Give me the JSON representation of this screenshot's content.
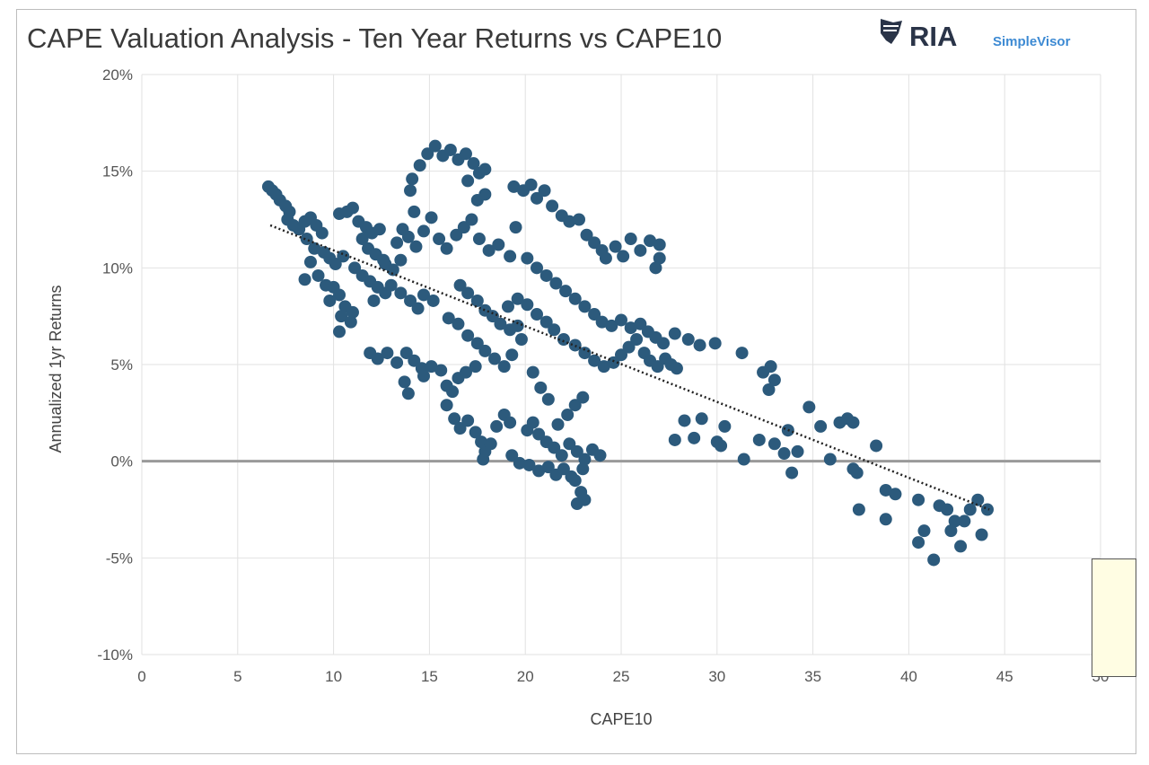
{
  "chart_data": {
    "type": "scatter",
    "title": "CAPE Valuation Analysis - Ten Year Returns vs CAPE10",
    "xlabel": "CAPE10",
    "ylabel": "Annualized 1yr Returns",
    "xlim": [
      0,
      50
    ],
    "ylim": [
      -10,
      20
    ],
    "x_ticks": [
      0,
      5,
      10,
      15,
      20,
      25,
      30,
      35,
      40,
      45,
      50
    ],
    "y_ticks": [
      -10,
      -5,
      0,
      5,
      10,
      15,
      20
    ],
    "x_tick_labels": [
      "0",
      "5",
      "10",
      "15",
      "20",
      "25",
      "30",
      "35",
      "40",
      "45",
      "50"
    ],
    "y_tick_labels": [
      "-10%",
      "-5%",
      "0%",
      "5%",
      "10%",
      "15%",
      "20%"
    ],
    "grid": true,
    "legend": "none",
    "colors": {
      "points": "#2c5a7c",
      "trendline": "#222222",
      "zero_line": "#9a9a9a",
      "grid": "#e2e2e2"
    },
    "trendline": {
      "style": "dotted",
      "points": [
        [
          6.7,
          12.2
        ],
        [
          44.2,
          -2.5
        ]
      ]
    },
    "series": [
      {
        "points": [
          [
            6.6,
            14.2
          ],
          [
            6.8,
            14.0
          ],
          [
            7.0,
            13.8
          ],
          [
            7.2,
            13.5
          ],
          [
            7.5,
            13.2
          ],
          [
            7.7,
            12.9
          ],
          [
            7.6,
            12.5
          ],
          [
            7.9,
            12.2
          ],
          [
            8.2,
            12.0
          ],
          [
            8.5,
            12.4
          ],
          [
            8.8,
            12.6
          ],
          [
            9.1,
            12.2
          ],
          [
            9.4,
            11.8
          ],
          [
            8.6,
            11.5
          ],
          [
            9.0,
            11.0
          ],
          [
            9.5,
            10.8
          ],
          [
            9.8,
            10.5
          ],
          [
            10.1,
            10.2
          ],
          [
            10.5,
            10.6
          ],
          [
            8.8,
            10.3
          ],
          [
            9.2,
            9.6
          ],
          [
            8.5,
            9.4
          ],
          [
            9.6,
            9.1
          ],
          [
            10.0,
            9.0
          ],
          [
            10.3,
            8.6
          ],
          [
            9.8,
            8.3
          ],
          [
            10.6,
            8.0
          ],
          [
            11.0,
            7.7
          ],
          [
            10.4,
            7.5
          ],
          [
            10.9,
            7.2
          ],
          [
            10.3,
            6.7
          ],
          [
            10.3,
            12.8
          ],
          [
            10.7,
            12.9
          ],
          [
            11.0,
            13.1
          ],
          [
            11.3,
            12.4
          ],
          [
            11.7,
            12.1
          ],
          [
            12.0,
            11.8
          ],
          [
            12.4,
            12.0
          ],
          [
            11.5,
            11.5
          ],
          [
            11.8,
            11.0
          ],
          [
            12.2,
            10.7
          ],
          [
            12.6,
            10.4
          ],
          [
            11.1,
            10.0
          ],
          [
            11.5,
            9.6
          ],
          [
            11.9,
            9.3
          ],
          [
            12.3,
            9.0
          ],
          [
            12.7,
            8.7
          ],
          [
            12.1,
            8.3
          ],
          [
            12.7,
            10.2
          ],
          [
            13.1,
            9.9
          ],
          [
            13.5,
            10.4
          ],
          [
            13.3,
            11.3
          ],
          [
            13.9,
            11.6
          ],
          [
            14.3,
            11.1
          ],
          [
            13.6,
            12.0
          ],
          [
            13.0,
            9.1
          ],
          [
            13.5,
            8.7
          ],
          [
            14.0,
            8.3
          ],
          [
            14.4,
            7.9
          ],
          [
            14.7,
            8.6
          ],
          [
            15.2,
            8.3
          ],
          [
            11.9,
            5.6
          ],
          [
            12.3,
            5.3
          ],
          [
            12.8,
            5.6
          ],
          [
            13.3,
            5.1
          ],
          [
            13.8,
            5.6
          ],
          [
            14.2,
            5.2
          ],
          [
            14.6,
            4.8
          ],
          [
            15.1,
            4.9
          ],
          [
            15.6,
            4.7
          ],
          [
            13.7,
            4.1
          ],
          [
            13.9,
            3.5
          ],
          [
            14.7,
            4.4
          ],
          [
            15.9,
            3.9
          ],
          [
            16.2,
            3.6
          ],
          [
            16.5,
            4.3
          ],
          [
            16.9,
            4.6
          ],
          [
            17.4,
            4.9
          ],
          [
            15.9,
            2.9
          ],
          [
            16.3,
            2.2
          ],
          [
            16.6,
            1.7
          ],
          [
            17.0,
            2.1
          ],
          [
            17.4,
            1.5
          ],
          [
            17.7,
            1.0
          ],
          [
            17.9,
            0.5
          ],
          [
            18.2,
            0.9
          ],
          [
            17.8,
            0.1
          ],
          [
            18.5,
            1.8
          ],
          [
            18.9,
            2.4
          ],
          [
            14.0,
            14.0
          ],
          [
            14.1,
            14.6
          ],
          [
            14.5,
            15.3
          ],
          [
            14.9,
            15.9
          ],
          [
            15.3,
            16.3
          ],
          [
            15.7,
            15.8
          ],
          [
            16.1,
            16.1
          ],
          [
            16.5,
            15.6
          ],
          [
            16.9,
            15.9
          ],
          [
            17.3,
            15.4
          ],
          [
            17.6,
            14.9
          ],
          [
            17.9,
            15.1
          ],
          [
            17.0,
            14.5
          ],
          [
            17.5,
            13.5
          ],
          [
            17.9,
            13.8
          ],
          [
            14.2,
            12.9
          ],
          [
            14.7,
            11.9
          ],
          [
            15.1,
            12.6
          ],
          [
            15.5,
            11.5
          ],
          [
            15.9,
            11.0
          ],
          [
            16.4,
            11.7
          ],
          [
            16.8,
            12.1
          ],
          [
            17.2,
            12.5
          ],
          [
            17.6,
            11.5
          ],
          [
            18.1,
            10.9
          ],
          [
            18.6,
            11.2
          ],
          [
            19.2,
            10.6
          ],
          [
            19.5,
            12.1
          ],
          [
            19.4,
            14.2
          ],
          [
            19.9,
            14.0
          ],
          [
            20.3,
            14.3
          ],
          [
            20.6,
            13.6
          ],
          [
            21.0,
            14.0
          ],
          [
            21.4,
            13.2
          ],
          [
            21.9,
            12.7
          ],
          [
            22.3,
            12.4
          ],
          [
            22.8,
            12.5
          ],
          [
            23.2,
            11.7
          ],
          [
            23.6,
            11.3
          ],
          [
            24.0,
            10.9
          ],
          [
            16.6,
            9.1
          ],
          [
            17.0,
            8.7
          ],
          [
            17.5,
            8.3
          ],
          [
            17.9,
            7.8
          ],
          [
            18.3,
            7.5
          ],
          [
            18.7,
            7.1
          ],
          [
            19.2,
            6.8
          ],
          [
            19.6,
            7.0
          ],
          [
            16.0,
            7.4
          ],
          [
            16.5,
            7.1
          ],
          [
            17.0,
            6.5
          ],
          [
            17.5,
            6.1
          ],
          [
            17.9,
            5.7
          ],
          [
            18.4,
            5.3
          ],
          [
            18.9,
            4.9
          ],
          [
            19.3,
            5.5
          ],
          [
            19.8,
            6.3
          ],
          [
            19.1,
            8.0
          ],
          [
            19.6,
            8.4
          ],
          [
            20.1,
            8.1
          ],
          [
            20.6,
            7.6
          ],
          [
            21.1,
            7.2
          ],
          [
            21.5,
            6.8
          ],
          [
            22.0,
            6.3
          ],
          [
            22.6,
            6.0
          ],
          [
            23.1,
            5.6
          ],
          [
            23.6,
            5.2
          ],
          [
            24.1,
            4.9
          ],
          [
            24.6,
            5.1
          ],
          [
            25.0,
            5.5
          ],
          [
            25.4,
            5.9
          ],
          [
            25.8,
            6.3
          ],
          [
            26.2,
            5.6
          ],
          [
            26.5,
            5.2
          ],
          [
            26.9,
            4.9
          ],
          [
            27.3,
            5.3
          ],
          [
            27.6,
            5.0
          ],
          [
            27.9,
            4.8
          ],
          [
            20.1,
            10.5
          ],
          [
            20.6,
            10.0
          ],
          [
            21.1,
            9.6
          ],
          [
            21.6,
            9.2
          ],
          [
            22.1,
            8.8
          ],
          [
            22.6,
            8.4
          ],
          [
            23.1,
            8.0
          ],
          [
            23.6,
            7.6
          ],
          [
            24.0,
            7.2
          ],
          [
            24.5,
            7.0
          ],
          [
            25.0,
            7.3
          ],
          [
            25.5,
            6.9
          ],
          [
            26.0,
            7.1
          ],
          [
            26.4,
            6.7
          ],
          [
            26.8,
            6.4
          ],
          [
            27.2,
            6.1
          ],
          [
            24.2,
            10.5
          ],
          [
            24.7,
            11.1
          ],
          [
            25.1,
            10.6
          ],
          [
            25.5,
            11.5
          ],
          [
            26.0,
            10.9
          ],
          [
            26.5,
            11.4
          ],
          [
            27.0,
            11.2
          ],
          [
            27.0,
            10.5
          ],
          [
            26.8,
            10.0
          ],
          [
            27.8,
            6.6
          ],
          [
            28.5,
            6.3
          ],
          [
            29.1,
            6.0
          ],
          [
            29.9,
            6.1
          ],
          [
            31.3,
            5.6
          ],
          [
            32.4,
            4.6
          ],
          [
            32.8,
            4.9
          ],
          [
            32.7,
            3.7
          ],
          [
            33.0,
            4.2
          ],
          [
            20.1,
            1.6
          ],
          [
            20.4,
            2.0
          ],
          [
            20.7,
            1.4
          ],
          [
            21.1,
            1.0
          ],
          [
            21.5,
            0.7
          ],
          [
            21.9,
            0.3
          ],
          [
            22.3,
            0.9
          ],
          [
            22.7,
            0.5
          ],
          [
            23.1,
            0.1
          ],
          [
            23.5,
            0.6
          ],
          [
            23.9,
            0.3
          ],
          [
            23.0,
            -0.4
          ],
          [
            22.6,
            -1.0
          ],
          [
            22.9,
            -1.6
          ],
          [
            23.1,
            -2.0
          ],
          [
            22.7,
            -2.2
          ],
          [
            19.3,
            0.3
          ],
          [
            19.7,
            -0.1
          ],
          [
            20.2,
            -0.2
          ],
          [
            20.7,
            -0.5
          ],
          [
            21.2,
            -0.3
          ],
          [
            21.6,
            -0.7
          ],
          [
            22.0,
            -0.4
          ],
          [
            22.4,
            -0.8
          ],
          [
            21.7,
            1.9
          ],
          [
            22.2,
            2.4
          ],
          [
            22.6,
            2.9
          ],
          [
            23.0,
            3.3
          ],
          [
            20.4,
            4.6
          ],
          [
            20.8,
            3.8
          ],
          [
            21.2,
            3.2
          ],
          [
            19.2,
            2.0
          ],
          [
            27.8,
            1.1
          ],
          [
            28.3,
            2.1
          ],
          [
            28.8,
            1.2
          ],
          [
            29.2,
            2.2
          ],
          [
            30.0,
            1.0
          ],
          [
            30.4,
            1.8
          ],
          [
            30.2,
            0.8
          ],
          [
            31.4,
            0.1
          ],
          [
            32.2,
            1.1
          ],
          [
            33.0,
            0.9
          ],
          [
            33.5,
            0.4
          ],
          [
            33.7,
            1.6
          ],
          [
            33.9,
            -0.6
          ],
          [
            34.2,
            0.5
          ],
          [
            34.8,
            2.8
          ],
          [
            35.4,
            1.8
          ],
          [
            35.9,
            0.1
          ],
          [
            36.4,
            2.0
          ],
          [
            36.8,
            2.2
          ],
          [
            37.1,
            2.0
          ],
          [
            37.3,
            -0.6
          ],
          [
            37.1,
            -0.4
          ],
          [
            37.4,
            -2.5
          ],
          [
            38.3,
            0.8
          ],
          [
            38.8,
            -1.5
          ],
          [
            39.3,
            -1.7
          ],
          [
            38.8,
            -3.0
          ],
          [
            40.5,
            -2.0
          ],
          [
            40.5,
            -4.2
          ],
          [
            40.8,
            -3.6
          ],
          [
            41.3,
            -5.1
          ],
          [
            41.6,
            -2.3
          ],
          [
            42.0,
            -2.5
          ],
          [
            42.2,
            -3.6
          ],
          [
            42.4,
            -3.1
          ],
          [
            42.7,
            -4.4
          ],
          [
            42.9,
            -3.1
          ],
          [
            43.2,
            -2.5
          ],
          [
            43.6,
            -2.0
          ],
          [
            43.8,
            -3.8
          ],
          [
            44.1,
            -2.5
          ]
        ]
      }
    ]
  },
  "brand": {
    "ria": "RIA",
    "simplevisor": "SimpleVisor"
  }
}
